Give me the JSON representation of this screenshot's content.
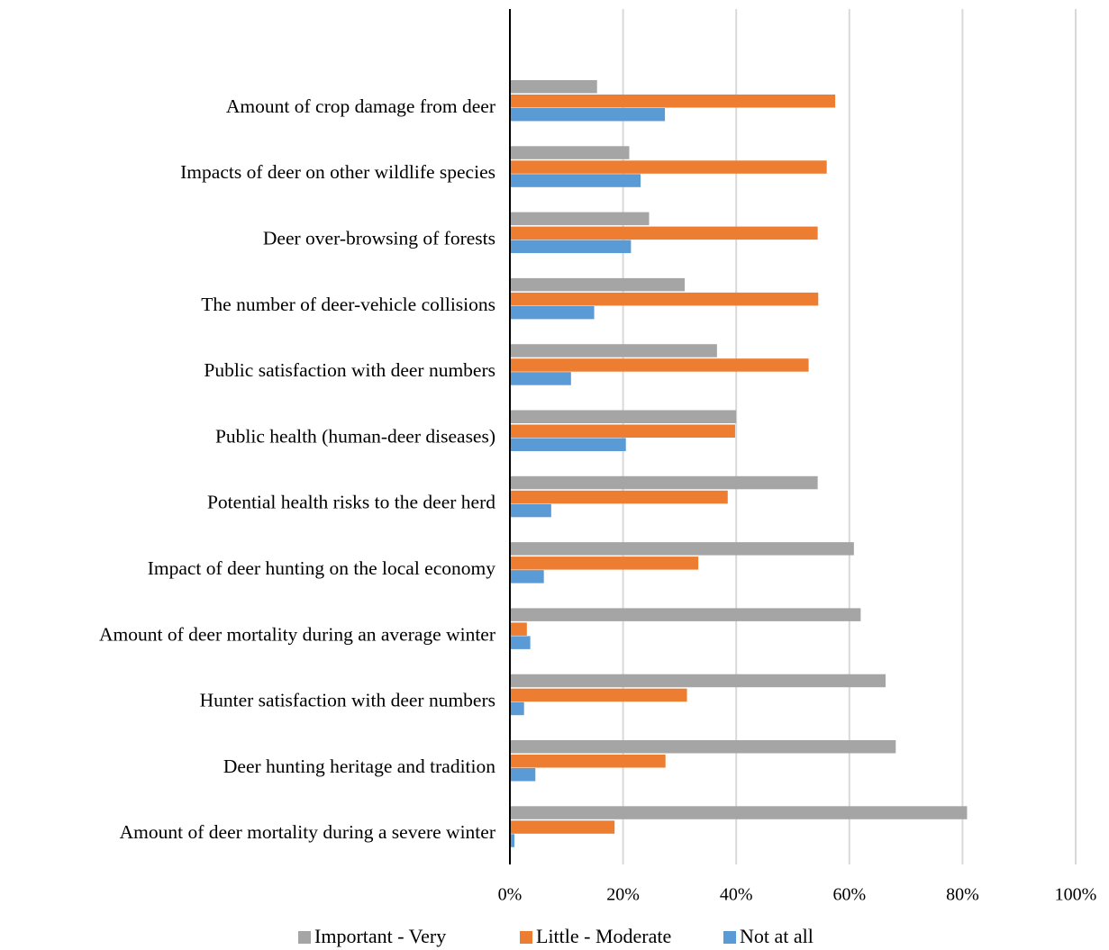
{
  "chart_data": {
    "type": "bar",
    "orientation": "horizontal",
    "title": "",
    "xlabel": "",
    "ylabel": "",
    "categories": [
      "Amount of crop damage from deer",
      "Impacts of deer on other wildlife species",
      "Deer over-browsing of forests",
      "The number of deer-vehicle collisions",
      "Public satisfaction with deer numbers",
      "Public health (human-deer diseases)",
      "Potential health risks to the deer herd",
      "Impact of deer hunting on the local economy",
      "Amount of deer mortality during an average winter",
      "Hunter satisfaction with deer numbers",
      "Deer hunting heritage and tradition",
      "Amount of deer mortality during a severe winter"
    ],
    "series": [
      {
        "name": "Important - Very",
        "color": "#a5a5a5",
        "values": [
          15.4,
          21.1,
          24.6,
          30.9,
          36.6,
          40.0,
          54.4,
          60.8,
          62.0,
          66.4,
          68.2,
          80.8
        ]
      },
      {
        "name": "Little - Moderate",
        "color": "#ed7d31",
        "values": [
          57.5,
          56.0,
          54.4,
          54.5,
          52.8,
          39.8,
          38.5,
          33.3,
          3.0,
          31.3,
          27.5,
          18.5
        ]
      },
      {
        "name": "Not at all",
        "color": "#5b9bd5",
        "values": [
          27.4,
          23.1,
          21.4,
          14.9,
          10.8,
          20.5,
          7.3,
          6.0,
          3.6,
          2.5,
          4.5,
          0.8
        ]
      }
    ],
    "xlim": [
      0,
      100
    ],
    "x_ticks": [
      "0%",
      "20%",
      "40%",
      "60%",
      "80%",
      "100%"
    ],
    "grid": true,
    "legend_position": "bottom"
  }
}
